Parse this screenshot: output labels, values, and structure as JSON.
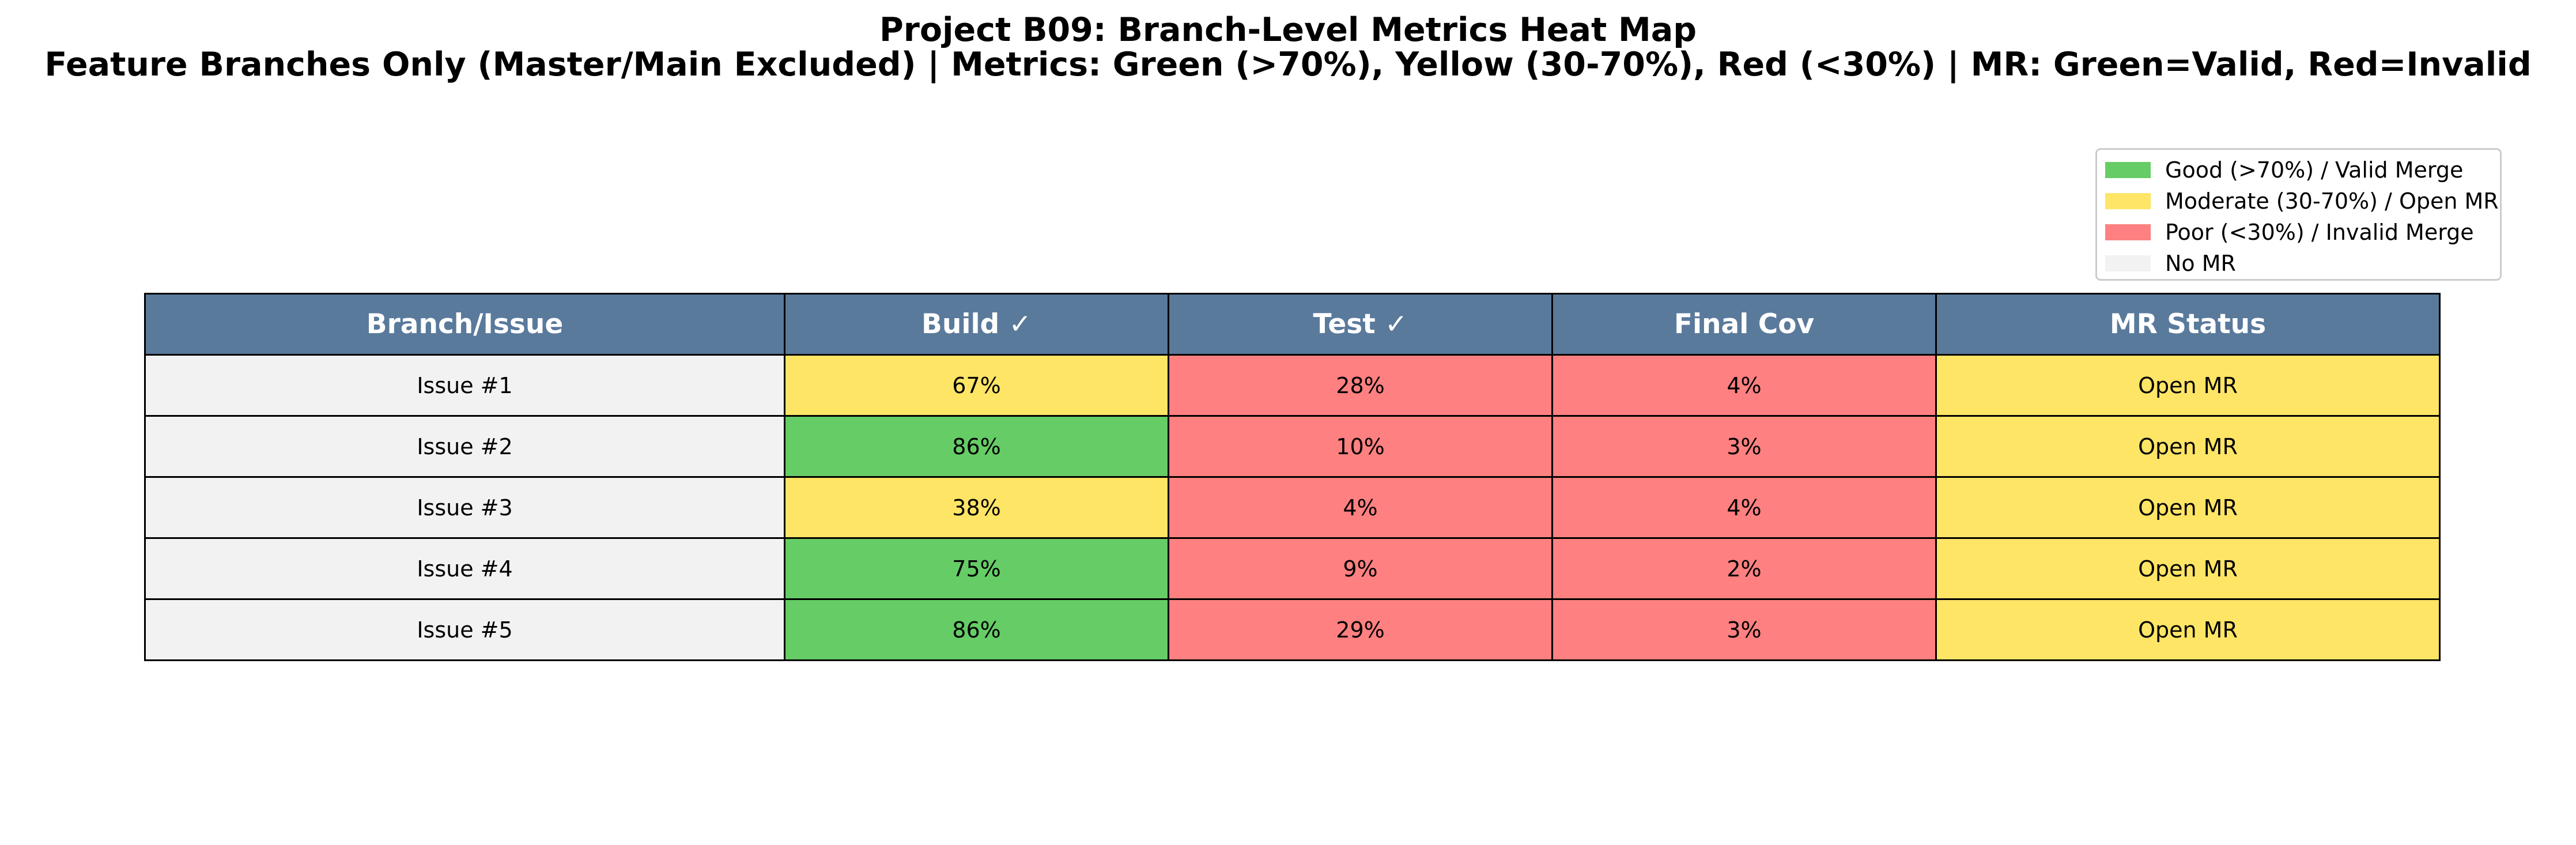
{
  "title": "Project B09: Branch-Level Metrics Heat Map",
  "subtitle": "Feature Branches Only (Master/Main Excluded) | Metrics: Green (>70%), Yellow (30-70%), Red (<30%) | MR: Green=Valid, Red=Invalid",
  "colors": {
    "header": "#5a7a9c",
    "good": "#66cc66",
    "moderate": "#ffe566",
    "poor": "#ff8080",
    "none": "#f2f2f2"
  },
  "legend": [
    {
      "label": "Good (>70%) / Valid Merge",
      "color": "#66cc66"
    },
    {
      "label": "Moderate (30-70%) / Open MR",
      "color": "#ffe566"
    },
    {
      "label": "Poor (<30%) / Invalid Merge",
      "color": "#ff8080"
    },
    {
      "label": "No MR",
      "color": "#f2f2f2"
    }
  ],
  "chart_data": {
    "type": "heatmap",
    "title": "Project B09: Branch-Level Metrics Heat Map",
    "subtitle": "Feature Branches Only (Master/Main Excluded) | Metrics: Green (>70%), Yellow (30-70%), Red (<30%) | MR: Green=Valid, Red=Invalid",
    "columns": [
      "Branch/Issue",
      "Build ✓",
      "Test ✓",
      "Final Cov",
      "MR Status"
    ],
    "rows": [
      {
        "branch": "Issue #1",
        "build": 67,
        "test": 28,
        "final_cov": 4,
        "mr_status": "Open MR"
      },
      {
        "branch": "Issue #2",
        "build": 86,
        "test": 10,
        "final_cov": 3,
        "mr_status": "Open MR"
      },
      {
        "branch": "Issue #3",
        "build": 38,
        "test": 4,
        "final_cov": 4,
        "mr_status": "Open MR"
      },
      {
        "branch": "Issue #4",
        "build": 75,
        "test": 9,
        "final_cov": 2,
        "mr_status": "Open MR"
      },
      {
        "branch": "Issue #5",
        "build": 86,
        "test": 29,
        "final_cov": 3,
        "mr_status": "Open MR"
      }
    ],
    "thresholds": {
      "good_above": 70,
      "poor_below": 30
    },
    "legend_position": "top-right"
  }
}
